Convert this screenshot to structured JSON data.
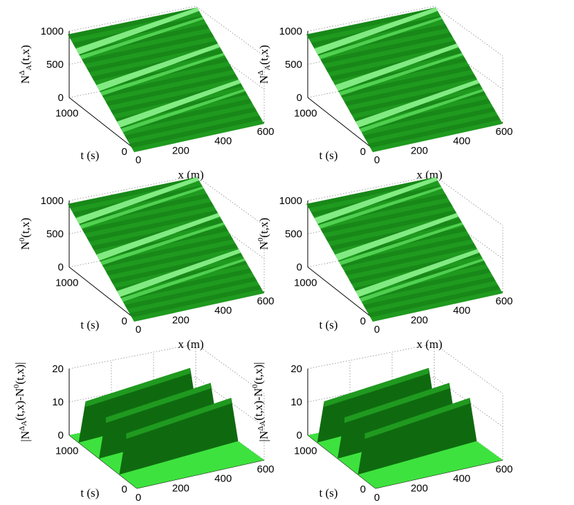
{
  "colors": {
    "surface_dark": "#137a13",
    "surface_mid": "#1f9a1f",
    "surface_light": "#5ee05e",
    "surface_highlight": "#8ef58e",
    "floor_light": "#3ee23e",
    "wall_dark": "#0f6a0f"
  },
  "chart_data": [
    {
      "type": "surface",
      "panel": "top-left",
      "zlabel_main": "N",
      "zlabel_sup": "Δ",
      "zlabel_sub": "A",
      "zlabel_tail": "(t,x)",
      "xlabel": "x (m)",
      "ylabel": "t (s)",
      "xticks": [
        "0",
        "200",
        "400",
        "600"
      ],
      "yticks": [
        "0",
        "1000"
      ],
      "zticks": [
        "0",
        "500",
        "1000"
      ],
      "xlim": [
        0,
        600
      ],
      "ylim": [
        0,
        1500
      ],
      "zlim": [
        0,
        1000
      ],
      "grid": true,
      "waves": 3
    },
    {
      "type": "surface",
      "panel": "top-right",
      "zlabel_main": "N",
      "zlabel_sup": "Δ",
      "zlabel_sub": "A",
      "zlabel_tail": "(t,x)",
      "xlabel": "x (m)",
      "ylabel": "t (s)",
      "xticks": [
        "0",
        "200",
        "400",
        "600"
      ],
      "yticks": [
        "0",
        "1000"
      ],
      "zticks": [
        "0",
        "500",
        "1000"
      ],
      "xlim": [
        0,
        600
      ],
      "ylim": [
        0,
        1500
      ],
      "zlim": [
        0,
        1000
      ],
      "grid": true,
      "waves": 3
    },
    {
      "type": "surface",
      "panel": "middle-left",
      "zlabel_main": "N",
      "zlabel_sup": "0",
      "zlabel_sub": "",
      "zlabel_tail": "(t,x)",
      "xlabel": "x (m)",
      "ylabel": "t (s)",
      "xticks": [
        "0",
        "200",
        "400",
        "600"
      ],
      "yticks": [
        "0",
        "1000"
      ],
      "zticks": [
        "0",
        "500",
        "1000"
      ],
      "xlim": [
        0,
        600
      ],
      "ylim": [
        0,
        1500
      ],
      "zlim": [
        0,
        1000
      ],
      "grid": true,
      "waves": 3
    },
    {
      "type": "surface",
      "panel": "middle-right",
      "zlabel_main": "N",
      "zlabel_sup": "0",
      "zlabel_sub": "",
      "zlabel_tail": "(t,x)",
      "xlabel": "x (m)",
      "ylabel": "t (s)",
      "xticks": [
        "0",
        "200",
        "400",
        "600"
      ],
      "yticks": [
        "0",
        "1000"
      ],
      "zticks": [
        "0",
        "500",
        "1000"
      ],
      "xlim": [
        0,
        600
      ],
      "ylim": [
        0,
        1500
      ],
      "zlim": [
        0,
        1000
      ],
      "grid": true,
      "waves": 3
    },
    {
      "type": "surface",
      "panel": "bottom-left",
      "zlabel_text": "|N^Δ_A(t,x)-N^0(t,x)|",
      "xlabel": "x (m)",
      "ylabel": "t (s)",
      "xticks": [
        "0",
        "200",
        "400",
        "600"
      ],
      "yticks": [
        "0",
        "1000"
      ],
      "zticks": [
        "0",
        "10",
        "20"
      ],
      "xlim": [
        0,
        600
      ],
      "ylim": [
        0,
        1500
      ],
      "zlim": [
        0,
        20
      ],
      "grid": true,
      "walls": 3
    },
    {
      "type": "surface",
      "panel": "bottom-right",
      "zlabel_text": "|N^Δ_A(t,x)-N^0(t,x)|",
      "xlabel": "x (m)",
      "ylabel": "t (s)",
      "xticks": [
        "0",
        "200",
        "400",
        "600"
      ],
      "yticks": [
        "0",
        "1000"
      ],
      "zticks": [
        "0",
        "10",
        "20"
      ],
      "xlim": [
        0,
        600
      ],
      "ylim": [
        0,
        1500
      ],
      "zlim": [
        0,
        20
      ],
      "grid": true,
      "walls": 3
    }
  ]
}
